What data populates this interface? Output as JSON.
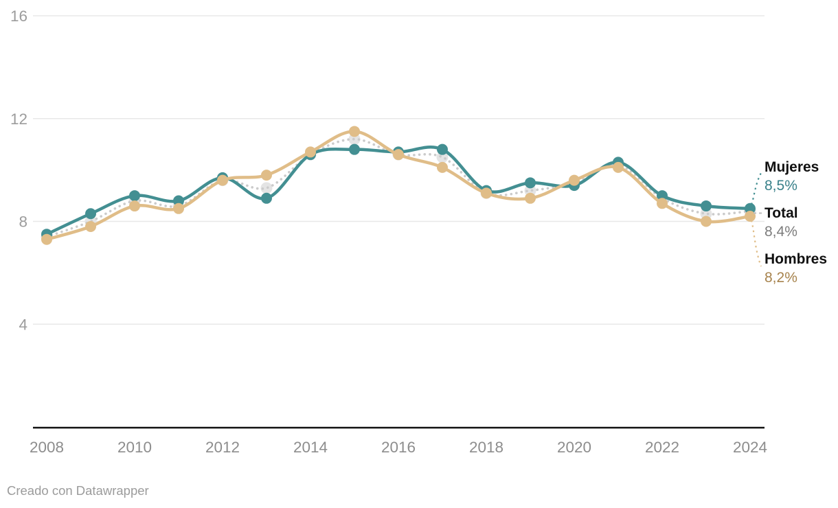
{
  "chart_data": {
    "type": "line",
    "title": "",
    "x": [
      2008,
      2009,
      2010,
      2011,
      2012,
      2013,
      2014,
      2015,
      2016,
      2017,
      2018,
      2019,
      2020,
      2021,
      2022,
      2023,
      2024
    ],
    "series": [
      {
        "name": "Mujeres",
        "color": "#438f92",
        "style": "solid",
        "values": [
          7.5,
          8.3,
          9.0,
          8.8,
          9.7,
          8.9,
          10.6,
          10.8,
          10.7,
          10.8,
          9.2,
          9.5,
          9.4,
          10.3,
          9.0,
          8.6,
          8.5
        ]
      },
      {
        "name": "Total",
        "color": "#cbcbcb",
        "marker_color": "#e4e4e4",
        "style": "dotted",
        "values": [
          7.4,
          8.0,
          8.8,
          8.6,
          9.6,
          9.3,
          10.6,
          11.2,
          10.6,
          10.5,
          9.1,
          9.2,
          9.5,
          10.2,
          8.9,
          8.3,
          8.4
        ]
      },
      {
        "name": "Hombres",
        "color": "#e0bd88",
        "style": "solid",
        "values": [
          7.3,
          7.8,
          8.6,
          8.5,
          9.6,
          9.8,
          10.7,
          11.5,
          10.6,
          10.1,
          9.1,
          8.9,
          9.6,
          10.1,
          8.7,
          8.0,
          8.2
        ]
      }
    ],
    "ylim": [
      0,
      16
    ],
    "yticks": [
      4,
      8,
      12,
      16
    ],
    "xticks": [
      2008,
      2010,
      2012,
      2014,
      2016,
      2018,
      2020,
      2022,
      2024
    ],
    "grid": "horizontal",
    "legend_position": "right",
    "legend": [
      {
        "label": "Mujeres",
        "value": "8,5%",
        "value_color": "#39818a"
      },
      {
        "label": "Total",
        "value": "8,4%",
        "value_color": "#7c7c7c"
      },
      {
        "label": "Hombres",
        "value": "8,2%",
        "value_color": "#a7834d"
      }
    ]
  },
  "footer": {
    "credit": "Creado con Datawrapper"
  },
  "colors": {
    "axis": "#111111",
    "grid": "#e8e8e8",
    "x_tick_label": "#8d8d8d",
    "y_tick_label": "#9c9c9c"
  }
}
